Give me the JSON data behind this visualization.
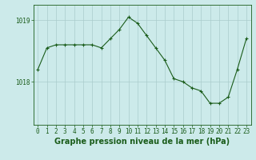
{
  "hours": [
    0,
    1,
    2,
    3,
    4,
    5,
    6,
    7,
    8,
    9,
    10,
    11,
    12,
    13,
    14,
    15,
    16,
    17,
    18,
    19,
    20,
    21,
    22,
    23
  ],
  "pressure": [
    1018.2,
    1018.55,
    1018.6,
    1018.6,
    1018.6,
    1018.6,
    1018.6,
    1018.55,
    1018.7,
    1018.85,
    1019.05,
    1018.95,
    1018.75,
    1018.55,
    1018.35,
    1018.05,
    1018.0,
    1017.9,
    1017.85,
    1017.65,
    1017.65,
    1017.75,
    1018.2,
    1018.7
  ],
  "line_color": "#1a5c1a",
  "marker": "+",
  "marker_size": 3,
  "marker_edge_width": 0.8,
  "line_width": 0.8,
  "bg_color": "#cceaea",
  "grid_color": "#aacccc",
  "xlabel": "Graphe pression niveau de la mer (hPa)",
  "xlabel_fontsize": 7,
  "tick_fontsize": 5.5,
  "ytick_labels": [
    "1018",
    "1019"
  ],
  "ytick_values": [
    1018,
    1019
  ],
  "ylim": [
    1017.3,
    1019.25
  ],
  "xlim": [
    -0.5,
    23.5
  ]
}
